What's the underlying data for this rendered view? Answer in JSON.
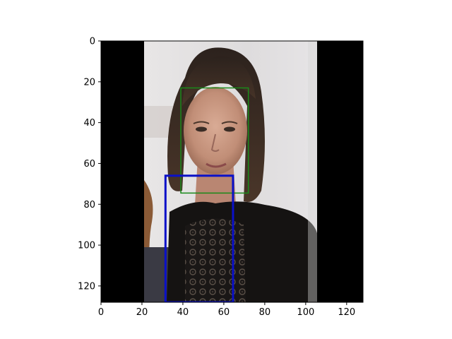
{
  "chart_data": {
    "type": "image",
    "xlim": [
      0,
      128
    ],
    "ylim": [
      128,
      0
    ],
    "y_axis_inverted": true,
    "xticks": [
      0,
      20,
      40,
      60,
      80,
      100,
      120
    ],
    "yticks": [
      0,
      20,
      40,
      60,
      80,
      100,
      120
    ],
    "grid": false,
    "image": {
      "content": "photograph of a woman with dark curly hair wearing a black lace top",
      "black_padding_left": [
        0,
        21
      ],
      "photo_region_x": [
        21,
        106
      ],
      "black_padding_right": [
        106,
        128
      ]
    },
    "overlays": [
      {
        "kind": "rectangle",
        "color": "#1a8a1a",
        "x": [
          39,
          72
        ],
        "y": [
          23,
          74.5
        ]
      },
      {
        "kind": "rectangle",
        "color": "#0a10c8",
        "x": [
          31.5,
          64.5
        ],
        "y": [
          66,
          128
        ]
      }
    ]
  }
}
